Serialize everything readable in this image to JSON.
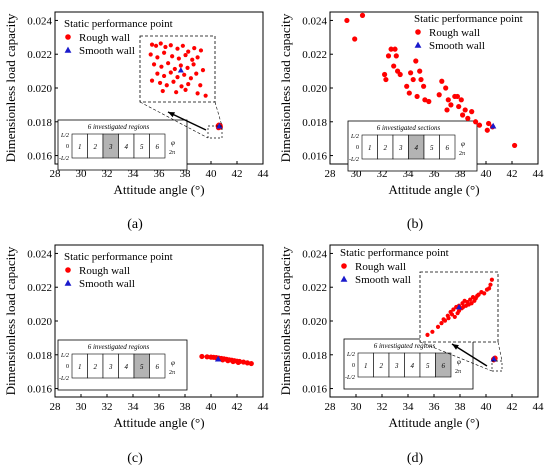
{
  "shared": {
    "xlabel": "Attitude angle (°)",
    "ylabel": "Dimensionless load capacity",
    "legend_title": "Static performance point",
    "legend_rough": "Rough wall",
    "legend_smooth": "Smooth wall",
    "inset_title_regions": "6 investigated regions",
    "inset_title_sections": "6 investigated sections",
    "inset_y_top": "L/2",
    "inset_y_mid": "0",
    "inset_y_bot": "-L/2",
    "inset_phi": "φ",
    "inset_2pi": "2π",
    "inset_cells": [
      "1",
      "2",
      "3",
      "4",
      "5",
      "6"
    ],
    "colors": {
      "rough": "#ff0000",
      "smooth": "#1a1acc"
    }
  },
  "chart_data": [
    {
      "type": "scatter",
      "label": "(a)",
      "xlabel": "Attitude angle (°)",
      "ylabel": "Dimensionless load capacity",
      "xlim": [
        28,
        44
      ],
      "ylim": [
        0.0155,
        0.0245
      ],
      "xticks": [
        "28",
        "30",
        "32",
        "34",
        "36",
        "38",
        "40",
        "42",
        "44"
      ],
      "yticks": [
        "0.016",
        "0.018",
        "0.020",
        "0.022",
        "0.024"
      ],
      "inset_title": "6 investigated regions",
      "highlighted_cell": 3,
      "series": [
        {
          "name": "Rough wall",
          "x": [
            40.55,
            40.6,
            40.65,
            40.7,
            40.62,
            40.58,
            40.68,
            40.72,
            40.64,
            40.6
          ],
          "y": [
            0.01775,
            0.01772,
            0.0177,
            0.01778,
            0.01768,
            0.01765,
            0.01773,
            0.01769,
            0.01776,
            0.0178
          ]
        },
        {
          "name": "Smooth wall",
          "x": [
            40.65
          ],
          "y": [
            0.01775
          ]
        }
      ],
      "zoom_points": [
        [
          0.12,
          0.08
        ],
        [
          0.18,
          0.1
        ],
        [
          0.25,
          0.06
        ],
        [
          0.32,
          0.12
        ],
        [
          0.4,
          0.09
        ],
        [
          0.5,
          0.15
        ],
        [
          0.58,
          0.1
        ],
        [
          0.66,
          0.2
        ],
        [
          0.75,
          0.14
        ],
        [
          0.85,
          0.18
        ],
        [
          0.1,
          0.25
        ],
        [
          0.2,
          0.3
        ],
        [
          0.3,
          0.22
        ],
        [
          0.42,
          0.28
        ],
        [
          0.52,
          0.32
        ],
        [
          0.62,
          0.26
        ],
        [
          0.72,
          0.34
        ],
        [
          0.8,
          0.3
        ],
        [
          0.15,
          0.42
        ],
        [
          0.26,
          0.46
        ],
        [
          0.36,
          0.4
        ],
        [
          0.46,
          0.5
        ],
        [
          0.55,
          0.44
        ],
        [
          0.65,
          0.48
        ],
        [
          0.74,
          0.42
        ],
        [
          0.88,
          0.52
        ],
        [
          0.2,
          0.58
        ],
        [
          0.3,
          0.62
        ],
        [
          0.4,
          0.56
        ],
        [
          0.5,
          0.64
        ],
        [
          0.6,
          0.6
        ],
        [
          0.7,
          0.66
        ],
        [
          0.78,
          0.58
        ],
        [
          0.12,
          0.7
        ],
        [
          0.24,
          0.74
        ],
        [
          0.34,
          0.78
        ],
        [
          0.44,
          0.72
        ],
        [
          0.56,
          0.8
        ],
        [
          0.66,
          0.76
        ],
        [
          0.84,
          0.78
        ],
        [
          0.28,
          0.88
        ],
        [
          0.48,
          0.9
        ],
        [
          0.62,
          0.86
        ],
        [
          0.8,
          0.92
        ],
        [
          0.92,
          0.96
        ]
      ],
      "zoom_smooth": [
        0.55,
        0.52
      ]
    },
    {
      "type": "scatter",
      "label": "(b)",
      "xlabel": "Attitude angle (°)",
      "ylabel": "Dimensionless load capacity",
      "xlim": [
        28,
        44
      ],
      "ylim": [
        0.0155,
        0.0245
      ],
      "xticks": [
        "28",
        "30",
        "32",
        "34",
        "36",
        "38",
        "40",
        "42",
        "44"
      ],
      "yticks": [
        "0.016",
        "0.018",
        "0.020",
        "0.022",
        "0.024"
      ],
      "inset_title": "6 investigated sections",
      "highlighted_cell": 4,
      "series": [
        {
          "name": "Rough wall",
          "x": [
            29.3,
            30.5,
            29.9,
            32.7,
            33.0,
            33.1,
            32.5,
            32.2,
            32.3,
            33.2,
            33.4,
            32.9,
            34.2,
            34.6,
            34.9,
            34.4,
            33.9,
            34.1,
            35.0,
            34.7,
            35.3,
            35.6,
            35.2,
            36.6,
            36.9,
            37.1,
            36.4,
            37.6,
            37.3,
            37.0,
            37.8,
            38.1,
            37.9,
            38.4,
            38.2,
            38.6,
            38.9,
            39.2,
            39.5,
            40.2,
            40.5,
            40.1,
            42.2
          ],
          "y": [
            0.024,
            0.0243,
            0.0229,
            0.0223,
            0.0223,
            0.0219,
            0.0219,
            0.0208,
            0.0205,
            0.021,
            0.0208,
            0.0213,
            0.0209,
            0.0216,
            0.021,
            0.0205,
            0.0201,
            0.0197,
            0.0205,
            0.0195,
            0.0193,
            0.0192,
            0.0201,
            0.0204,
            0.02,
            0.0193,
            0.0196,
            0.0195,
            0.019,
            0.0187,
            0.0195,
            0.0193,
            0.0189,
            0.0187,
            0.0184,
            0.0182,
            0.0186,
            0.018,
            0.0178,
            0.0179,
            0.0177,
            0.0175,
            0.0166
          ]
        },
        {
          "name": "Smooth wall",
          "x": [
            40.55
          ],
          "y": [
            0.01775
          ]
        }
      ]
    },
    {
      "type": "scatter",
      "label": "(c)",
      "xlabel": "Attitude angle (°)",
      "ylabel": "Dimensionless load capacity",
      "xlim": [
        28,
        44
      ],
      "ylim": [
        0.0155,
        0.0245
      ],
      "xticks": [
        "28",
        "30",
        "32",
        "34",
        "36",
        "38",
        "40",
        "42",
        "44"
      ],
      "yticks": [
        "0.016",
        "0.018",
        "0.020",
        "0.022",
        "0.024"
      ],
      "inset_title": "6 investigated regions",
      "highlighted_cell": 5,
      "series": [
        {
          "name": "Rough wall",
          "x": [
            39.3,
            39.7,
            40.0,
            40.2,
            40.4,
            40.6,
            40.8,
            41.0,
            41.2,
            41.4,
            41.6,
            41.8,
            42.0,
            42.2,
            42.5,
            42.8,
            43.1,
            40.9,
            41.3,
            41.7,
            42.1
          ],
          "y": [
            0.0179,
            0.01788,
            0.01786,
            0.01785,
            0.01783,
            0.0178,
            0.01778,
            0.01776,
            0.01773,
            0.0177,
            0.01768,
            0.01765,
            0.01762,
            0.0176,
            0.01757,
            0.01752,
            0.01748,
            0.0177,
            0.01765,
            0.0176,
            0.01755
          ]
        },
        {
          "name": "Smooth wall",
          "x": [
            40.55
          ],
          "y": [
            0.01775
          ]
        }
      ]
    },
    {
      "type": "scatter",
      "label": "(d)",
      "xlabel": "Attitude angle (°)",
      "ylabel": "Dimensionless load capacity",
      "xlim": [
        28,
        44
      ],
      "ylim": [
        0.0155,
        0.0245
      ],
      "xticks": [
        "28",
        "30",
        "32",
        "34",
        "36",
        "38",
        "40",
        "42",
        "44"
      ],
      "yticks": [
        "0.016",
        "0.018",
        "0.020",
        "0.022",
        "0.024"
      ],
      "inset_title": "6 investigated regions",
      "highlighted_cell": 6,
      "series": [
        {
          "name": "Rough wall",
          "x": [
            40.58,
            40.62,
            40.66,
            40.7,
            40.6,
            40.68
          ],
          "y": [
            0.01772,
            0.01775,
            0.01778,
            0.0178,
            0.0177,
            0.01776
          ]
        },
        {
          "name": "Smooth wall",
          "x": [
            40.6
          ],
          "y": [
            0.01775
          ]
        }
      ],
      "zoom_points": [
        [
          0.05,
          0.95
        ],
        [
          0.12,
          0.9
        ],
        [
          0.2,
          0.82
        ],
        [
          0.25,
          0.76
        ],
        [
          0.3,
          0.72
        ],
        [
          0.35,
          0.68
        ],
        [
          0.4,
          0.62
        ],
        [
          0.44,
          0.66
        ],
        [
          0.48,
          0.6
        ],
        [
          0.5,
          0.56
        ],
        [
          0.54,
          0.52
        ],
        [
          0.38,
          0.58
        ],
        [
          0.42,
          0.54
        ],
        [
          0.46,
          0.5
        ],
        [
          0.5,
          0.48
        ],
        [
          0.55,
          0.44
        ],
        [
          0.58,
          0.4
        ],
        [
          0.62,
          0.42
        ],
        [
          0.66,
          0.38
        ],
        [
          0.7,
          0.34
        ],
        [
          0.74,
          0.36
        ],
        [
          0.78,
          0.3
        ],
        [
          0.82,
          0.26
        ],
        [
          0.86,
          0.28
        ],
        [
          0.9,
          0.22
        ],
        [
          0.93,
          0.2
        ],
        [
          0.95,
          0.14
        ],
        [
          0.6,
          0.48
        ],
        [
          0.64,
          0.46
        ],
        [
          0.68,
          0.44
        ],
        [
          0.72,
          0.4
        ],
        [
          0.34,
          0.64
        ],
        [
          0.28,
          0.7
        ],
        [
          0.56,
          0.5
        ],
        [
          0.76,
          0.32
        ],
        [
          0.97,
          0.06
        ]
      ],
      "zoom_smooth": [
        0.5,
        0.5
      ]
    }
  ]
}
